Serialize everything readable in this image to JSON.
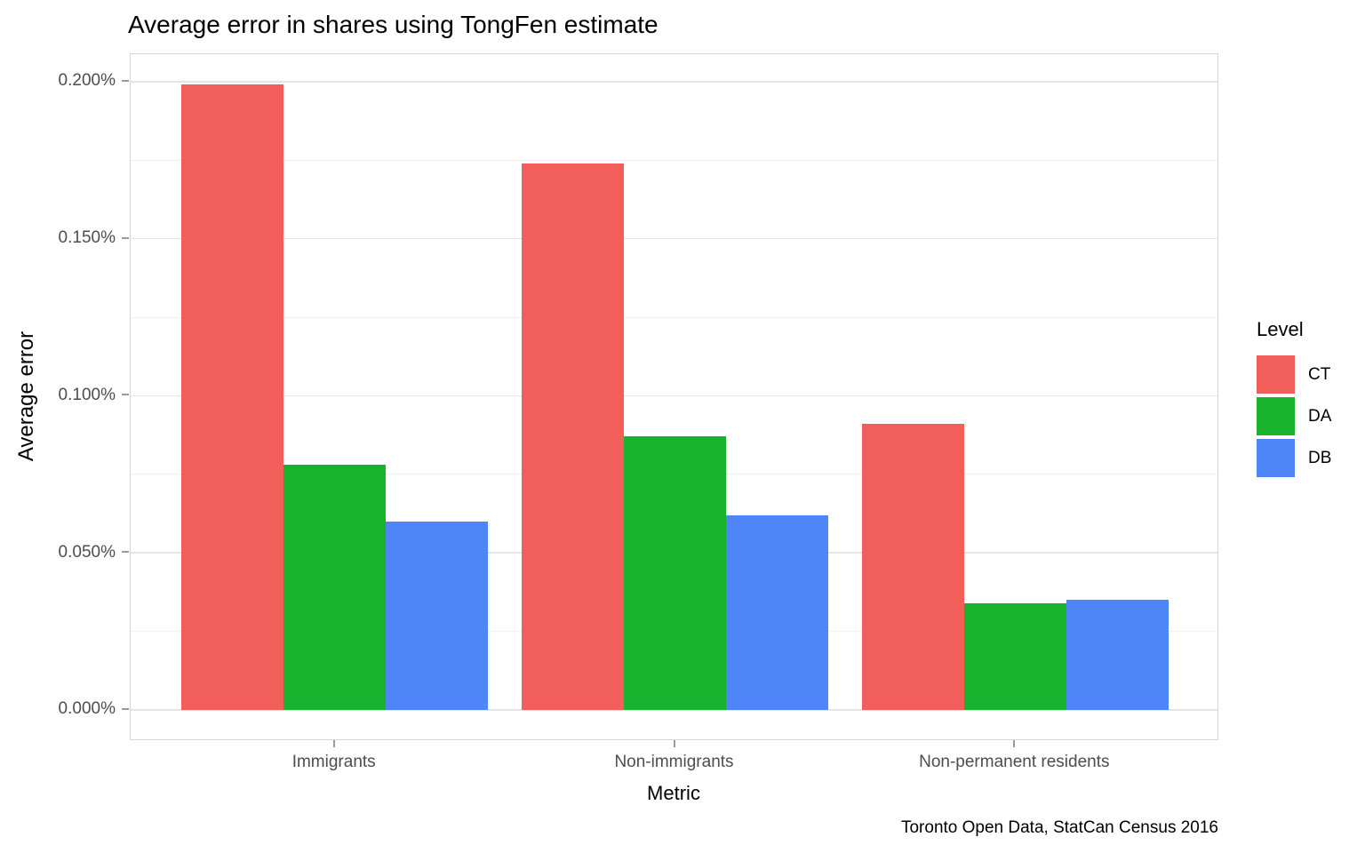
{
  "title": "Average error in shares using TongFen estimate",
  "caption": "Toronto Open Data, StatCan Census 2016",
  "chart_data": {
    "type": "bar",
    "title": "Average error in shares using TongFen estimate",
    "xlabel": "Metric",
    "ylabel": "Average error",
    "categories": [
      "Immigrants",
      "Non-immigrants",
      "Non-permanent residents"
    ],
    "series": [
      {
        "name": "CT",
        "color": "#f25e5a",
        "values": [
          0.199,
          0.174,
          0.091
        ]
      },
      {
        "name": "DA",
        "color": "#18b32c",
        "values": [
          0.078,
          0.087,
          0.034
        ]
      },
      {
        "name": "DB",
        "color": "#4f86f7",
        "values": [
          0.06,
          0.062,
          0.035
        ]
      }
    ],
    "values_unit": "percent",
    "y_ticks": [
      "0.000%",
      "0.050%",
      "0.100%",
      "0.150%",
      "0.200%"
    ],
    "y_tick_values": [
      0,
      0.05,
      0.1,
      0.15,
      0.2
    ],
    "y_minor_values": [
      0.025,
      0.075,
      0.125,
      0.175
    ],
    "ylim": [
      -0.00994,
      0.20874
    ],
    "x_range": [
      0.4,
      3.6
    ],
    "bar_width_units": 0.3,
    "grid": true,
    "legend_title": "Level",
    "legend_position": "right",
    "caption": "Toronto Open Data, StatCan Census 2016"
  }
}
